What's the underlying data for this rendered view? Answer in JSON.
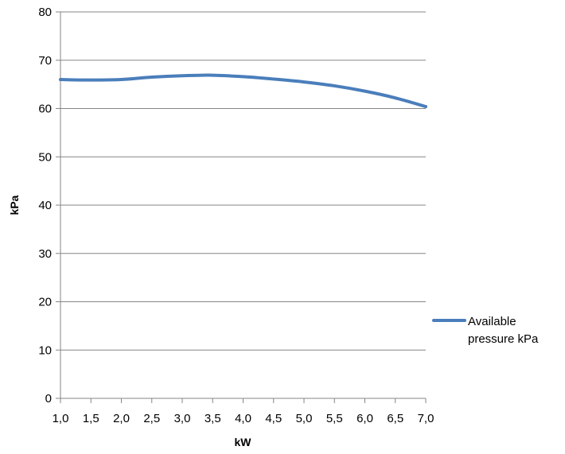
{
  "chart_data": {
    "type": "line",
    "xlabel": "kW",
    "ylabel": "kPa",
    "x": [
      1.0,
      1.5,
      2.0,
      2.5,
      3.0,
      3.5,
      4.0,
      4.5,
      5.0,
      5.5,
      6.0,
      6.5,
      7.0
    ],
    "x_tick_labels": [
      "1,0",
      "1,5",
      "2,0",
      "2,5",
      "3,0",
      "3,5",
      "4,0",
      "4,5",
      "5,0",
      "5,5",
      "6,0",
      "6,5",
      "7,0"
    ],
    "y_ticks": [
      0,
      10,
      20,
      30,
      40,
      50,
      60,
      70,
      80
    ],
    "ylim": [
      0,
      80
    ],
    "xlim": [
      1.0,
      7.0
    ],
    "grid": "horizontal",
    "legend_position": "right",
    "series": [
      {
        "name": "Available pressure kPa",
        "color": "#4a7ebb",
        "values": [
          66.0,
          65.9,
          66.0,
          66.5,
          66.8,
          66.9,
          66.6,
          66.1,
          65.5,
          64.7,
          63.6,
          62.2,
          60.4
        ]
      }
    ]
  }
}
